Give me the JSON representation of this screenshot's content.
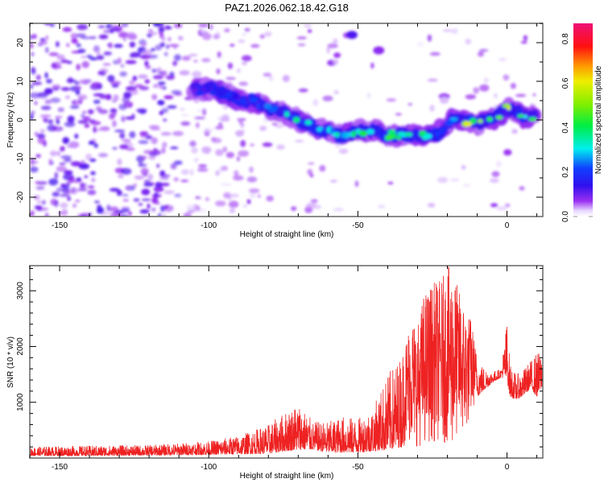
{
  "title": "PAZ1.2026.062.18.42.G18",
  "chart_data": [
    {
      "type": "heatmap",
      "title": "PAZ1.2026.062.18.42.G18",
      "xlabel": "Height of straight line (km)",
      "ylabel": "Frequency (Hz)",
      "xlim": [
        -160,
        12
      ],
      "ylim": [
        -25,
        25
      ],
      "xticks": [
        -150,
        -100,
        -50,
        0
      ],
      "xtick_labels": [
        "-150",
        "-100",
        "-50",
        "0"
      ],
      "yticks": [
        -20,
        -10,
        0,
        10,
        20
      ],
      "ytick_labels": [
        "-20",
        "-10",
        "0",
        "10",
        "20"
      ],
      "colorbar": {
        "label": "Normalized spectral amplitude",
        "range": [
          0,
          0.87
        ],
        "ticks": [
          0.0,
          0.2,
          0.4,
          0.6,
          0.8
        ],
        "tick_labels": [
          "0.0",
          "0.2",
          "0.4",
          "0.6",
          "0.8"
        ],
        "colormap": "rainbow (white-violet-blue-cyan-green-yellow-red-magenta)"
      },
      "ridge": {
        "description": "Main spectral ridge (frequency in Hz vs height in km) with peak normalized amplitude",
        "height_km": [
          -105,
          -100,
          -95,
          -90,
          -85,
          -80,
          -75,
          -70,
          -65,
          -60,
          -55,
          -50,
          -45,
          -40,
          -35,
          -30,
          -25,
          -22,
          -20,
          -18,
          -15,
          -10,
          -5,
          0,
          3,
          6,
          10
        ],
        "freq_hz": [
          8,
          8,
          7,
          5,
          5,
          3,
          2,
          0,
          -2,
          -3,
          -4,
          -3,
          -3,
          -4,
          -4,
          -4,
          -4,
          -3,
          -2,
          1,
          0,
          -1,
          0,
          3,
          2,
          1,
          1
        ],
        "amplitude": [
          0.15,
          0.2,
          0.2,
          0.18,
          0.22,
          0.3,
          0.3,
          0.4,
          0.3,
          0.3,
          0.35,
          0.4,
          0.45,
          0.45,
          0.42,
          0.45,
          0.4,
          0.3,
          0.25,
          0.4,
          0.55,
          0.7,
          0.7,
          0.6,
          0.55,
          0.5,
          0.45
        ]
      },
      "side_features": [
        {
          "height_km": -52,
          "freq_hz": 22,
          "amplitude": 0.12
        },
        {
          "height_km": -43,
          "freq_hz": 18,
          "amplitude": 0.08
        }
      ]
    },
    {
      "type": "line",
      "xlabel": "Height of straight line (km)",
      "ylabel": "SNR (10 * v/v)",
      "xlim": [
        -160,
        12
      ],
      "ylim": [
        0,
        3450
      ],
      "xticks": [
        -150,
        -100,
        -50,
        0
      ],
      "xtick_labels": [
        "-150",
        "-100",
        "-50",
        "0"
      ],
      "yticks": [
        1000,
        2000,
        3000
      ],
      "ytick_labels": [
        "1000",
        "2000",
        "3000"
      ],
      "series": [
        {
          "name": "SNR",
          "color": "#ee2222",
          "envelope": {
            "description": "Approximate running minimum/maximum of the noisy SNR trace",
            "x": [
              -160,
              -140,
              -120,
              -100,
              -90,
              -80,
              -75,
              -70,
              -65,
              -60,
              -55,
              -50,
              -45,
              -40,
              -35,
              -32,
              -30,
              -28,
              -25,
              -22,
              -20,
              -18,
              -16,
              -14,
              -12,
              -10,
              -8,
              -5,
              -2,
              0,
              1,
              3,
              5,
              8,
              10,
              12
            ],
            "min": [
              40,
              40,
              50,
              60,
              70,
              80,
              120,
              150,
              150,
              100,
              100,
              100,
              120,
              150,
              200,
              300,
              200,
              250,
              300,
              300,
              250,
              200,
              500,
              400,
              800,
              1100,
              1200,
              1350,
              1450,
              1400,
              1100,
              1050,
              1100,
              1250,
              1100,
              1300
            ],
            "max": [
              200,
              220,
              230,
              300,
              400,
              600,
              800,
              1000,
              650,
              650,
              750,
              700,
              900,
              1500,
              1900,
              2600,
              2350,
              2950,
              3150,
              3200,
              3450,
              3350,
              3000,
              2700,
              2500,
              1800,
              1650,
              1550,
              1600,
              2500,
              1700,
              1500,
              1550,
              1750,
              1900,
              1900
            ]
          }
        }
      ]
    }
  ]
}
